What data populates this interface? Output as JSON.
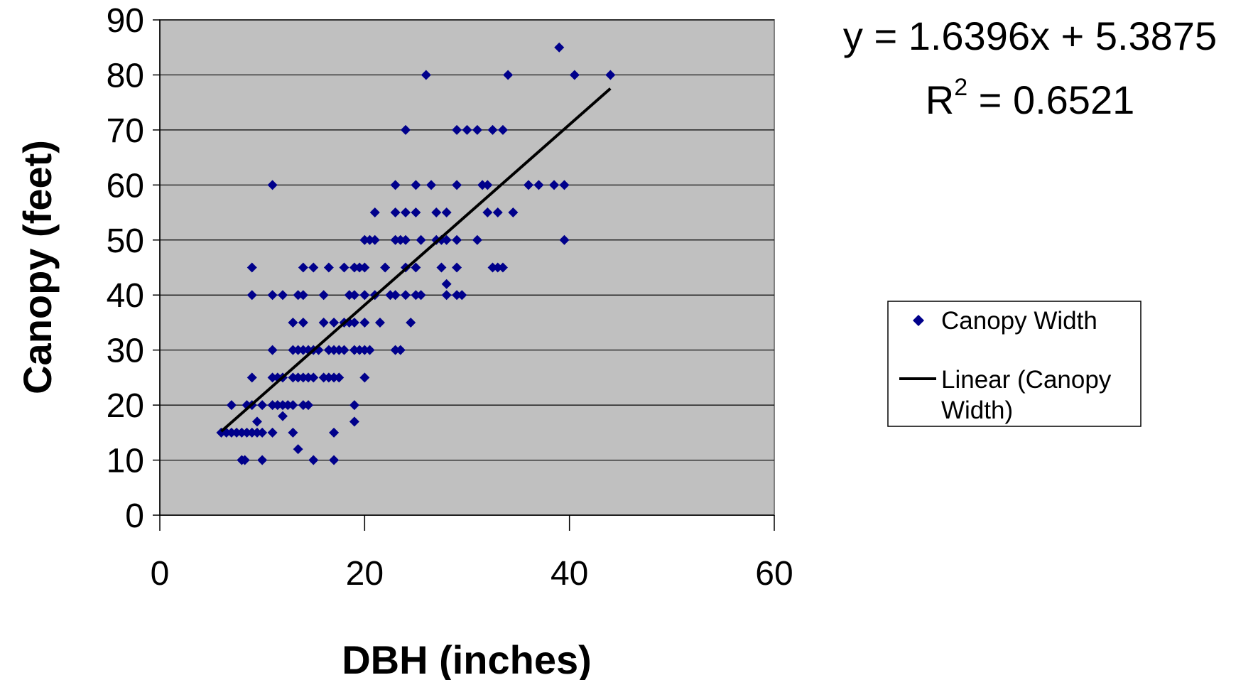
{
  "chart_data": {
    "type": "scatter",
    "xlabel": "DBH (inches)",
    "ylabel": "Canopy (feet)",
    "xlim": [
      0,
      60
    ],
    "ylim": [
      0,
      90
    ],
    "x_ticks": [
      0,
      20,
      40,
      60
    ],
    "y_ticks": [
      0,
      10,
      20,
      30,
      40,
      50,
      60,
      70,
      80,
      90
    ],
    "grid": "horizontal",
    "plot_background": "#c0c0c0",
    "legend_position": "right",
    "legend": [
      "Canopy Width",
      "Linear (Canopy",
      "Width)"
    ],
    "equation": "y = 1.6396x + 5.3875",
    "r_squared_prefix": "R",
    "r_squared_sup": "2",
    "r_squared_value": " = 0.6521",
    "series": [
      {
        "name": "Canopy Width",
        "marker": "diamond",
        "color": "#00008b",
        "points": [
          [
            6,
            15
          ],
          [
            6.5,
            15
          ],
          [
            7,
            15
          ],
          [
            7.5,
            15
          ],
          [
            7,
            20
          ],
          [
            8,
            10
          ],
          [
            8.3,
            10
          ],
          [
            8,
            15
          ],
          [
            8.5,
            15
          ],
          [
            8.5,
            20
          ],
          [
            9,
            20
          ],
          [
            9,
            15
          ],
          [
            9.5,
            15
          ],
          [
            9,
            25
          ],
          [
            9,
            40
          ],
          [
            9,
            45
          ],
          [
            9.5,
            17
          ],
          [
            10,
            10
          ],
          [
            10,
            15
          ],
          [
            10,
            20
          ],
          [
            11,
            15
          ],
          [
            11,
            20
          ],
          [
            11,
            25
          ],
          [
            11,
            30
          ],
          [
            11,
            40
          ],
          [
            11,
            60
          ],
          [
            11.5,
            20
          ],
          [
            11.5,
            25
          ],
          [
            12,
            18
          ],
          [
            12,
            20
          ],
          [
            12,
            25
          ],
          [
            12,
            40
          ],
          [
            12.5,
            20
          ],
          [
            13,
            15
          ],
          [
            13,
            20
          ],
          [
            13,
            25
          ],
          [
            13,
            30
          ],
          [
            13,
            35
          ],
          [
            13.5,
            12
          ],
          [
            13.5,
            25
          ],
          [
            13.5,
            30
          ],
          [
            13.5,
            40
          ],
          [
            14,
            20
          ],
          [
            14,
            25
          ],
          [
            14,
            30
          ],
          [
            14,
            35
          ],
          [
            14,
            40
          ],
          [
            14,
            45
          ],
          [
            14.5,
            20
          ],
          [
            14.5,
            25
          ],
          [
            14.5,
            30
          ],
          [
            15,
            10
          ],
          [
            15,
            25
          ],
          [
            15,
            30
          ],
          [
            15,
            45
          ],
          [
            15.5,
            30
          ],
          [
            16,
            25
          ],
          [
            16,
            35
          ],
          [
            16,
            40
          ],
          [
            16.5,
            25
          ],
          [
            16.5,
            30
          ],
          [
            16.5,
            45
          ],
          [
            17,
            10
          ],
          [
            17,
            15
          ],
          [
            17,
            25
          ],
          [
            17,
            30
          ],
          [
            17,
            35
          ],
          [
            17.5,
            25
          ],
          [
            17.5,
            30
          ],
          [
            18,
            30
          ],
          [
            18,
            35
          ],
          [
            18,
            45
          ],
          [
            18.5,
            40
          ],
          [
            18.5,
            35
          ],
          [
            19,
            17
          ],
          [
            19,
            20
          ],
          [
            19,
            30
          ],
          [
            19,
            35
          ],
          [
            19,
            40
          ],
          [
            19,
            45
          ],
          [
            19.5,
            30
          ],
          [
            19.5,
            45
          ],
          [
            20,
            25
          ],
          [
            20,
            30
          ],
          [
            20,
            35
          ],
          [
            20,
            40
          ],
          [
            20,
            45
          ],
          [
            20,
            50
          ],
          [
            20.5,
            30
          ],
          [
            20.5,
            50
          ],
          [
            21,
            40
          ],
          [
            21,
            50
          ],
          [
            21,
            55
          ],
          [
            21.5,
            35
          ],
          [
            22,
            45
          ],
          [
            22.5,
            40
          ],
          [
            23,
            30
          ],
          [
            23,
            40
          ],
          [
            23,
            50
          ],
          [
            23,
            55
          ],
          [
            23,
            60
          ],
          [
            23.5,
            30
          ],
          [
            23.5,
            50
          ],
          [
            24,
            40
          ],
          [
            24,
            45
          ],
          [
            24,
            50
          ],
          [
            24,
            55
          ],
          [
            24,
            70
          ],
          [
            24.5,
            35
          ],
          [
            25,
            40
          ],
          [
            25,
            45
          ],
          [
            25,
            55
          ],
          [
            25,
            60
          ],
          [
            25.5,
            40
          ],
          [
            25.5,
            50
          ],
          [
            26,
            80
          ],
          [
            26.5,
            60
          ],
          [
            27,
            55
          ],
          [
            27,
            50
          ],
          [
            27.5,
            45
          ],
          [
            27.5,
            50
          ],
          [
            28,
            42
          ],
          [
            28,
            50
          ],
          [
            28,
            40
          ],
          [
            28,
            55
          ],
          [
            29,
            40
          ],
          [
            29,
            45
          ],
          [
            29,
            50
          ],
          [
            29,
            60
          ],
          [
            29,
            70
          ],
          [
            29.5,
            40
          ],
          [
            30,
            70
          ],
          [
            31,
            70
          ],
          [
            31,
            50
          ],
          [
            31.5,
            60
          ],
          [
            32,
            55
          ],
          [
            32,
            60
          ],
          [
            32.5,
            45
          ],
          [
            32.5,
            70
          ],
          [
            33,
            45
          ],
          [
            33,
            55
          ],
          [
            33.5,
            45
          ],
          [
            33.5,
            70
          ],
          [
            34,
            80
          ],
          [
            34.5,
            55
          ],
          [
            36,
            60
          ],
          [
            37,
            60
          ],
          [
            38.5,
            60
          ],
          [
            39,
            85
          ],
          [
            39.5,
            60
          ],
          [
            39.5,
            50
          ],
          [
            40.5,
            80
          ],
          [
            44,
            80
          ]
        ]
      },
      {
        "name": "Linear (Canopy Width)",
        "type": "line",
        "color": "#000000",
        "slope": 1.6396,
        "intercept": 5.3875,
        "x_range": [
          6,
          44
        ]
      }
    ]
  }
}
